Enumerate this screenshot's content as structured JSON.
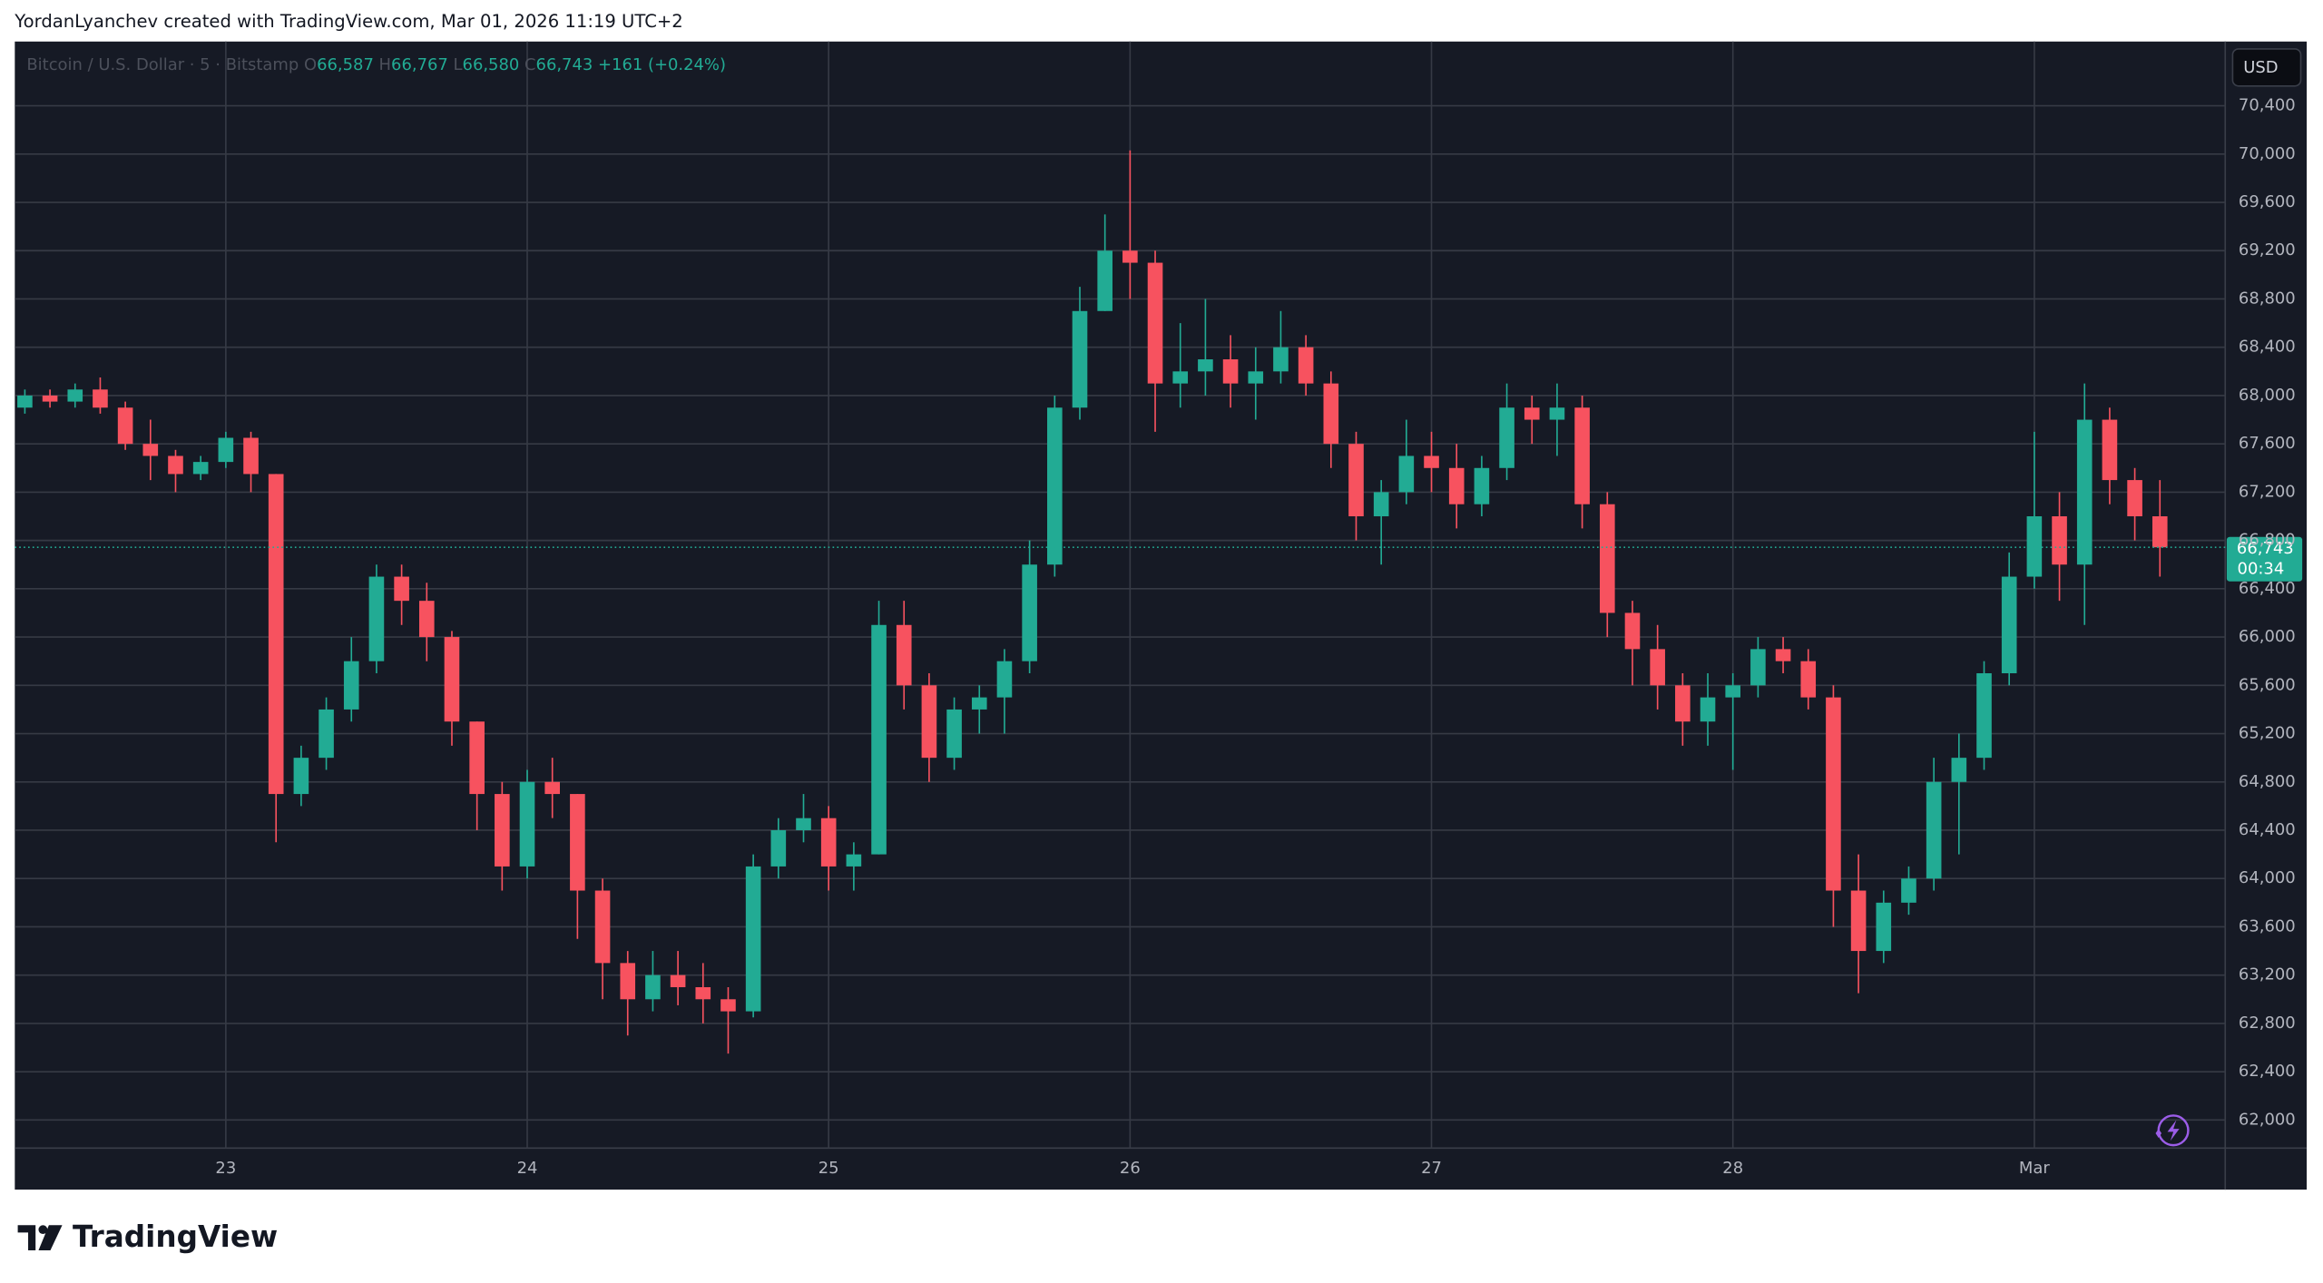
{
  "attribution": "YordanLyanchev created with TradingView.com, Mar 01, 2026 11:19 UTC+2",
  "footer": {
    "brand": "TradingView"
  },
  "currency_button": "USD",
  "chart_data": {
    "type": "candlestick",
    "legend": {
      "symbol": "Bitcoin / U.S. Dollar · 5 · Bitstamp",
      "o_label": "O",
      "open": "66,587",
      "h_label": "H",
      "high": "66,767",
      "l_label": "L",
      "low": "66,580",
      "c_label": "C",
      "close": "66,743",
      "change": "+161 (+0.24%)"
    },
    "price_tag": {
      "value": 66743,
      "label": "66,743",
      "countdown": "00:34"
    },
    "up_color": "#22ab94",
    "down_color": "#f7525f",
    "grid": true,
    "xlim": [
      -0.4,
      87.6
    ],
    "xticks": [
      {
        "value": 8,
        "label": "23"
      },
      {
        "value": 20,
        "label": "24"
      },
      {
        "value": 32,
        "label": "25"
      },
      {
        "value": 44,
        "label": "26"
      },
      {
        "value": 56,
        "label": "27"
      },
      {
        "value": 68,
        "label": "28"
      },
      {
        "value": 80,
        "label": "Mar"
      }
    ],
    "ylim": [
      61767,
      70932
    ],
    "yticks": [
      {
        "value": 62000,
        "label": "62,000"
      },
      {
        "value": 62400,
        "label": "62,400"
      },
      {
        "value": 62800,
        "label": "62,800"
      },
      {
        "value": 63200,
        "label": "63,200"
      },
      {
        "value": 63600,
        "label": "63,600"
      },
      {
        "value": 64000,
        "label": "64,000"
      },
      {
        "value": 64400,
        "label": "64,400"
      },
      {
        "value": 64800,
        "label": "64,800"
      },
      {
        "value": 65200,
        "label": "65,200"
      },
      {
        "value": 65600,
        "label": "65,600"
      },
      {
        "value": 66000,
        "label": "66,000"
      },
      {
        "value": 66400,
        "label": "66,400"
      },
      {
        "value": 66800,
        "label": "66,800"
      },
      {
        "value": 67200,
        "label": "67,200"
      },
      {
        "value": 67600,
        "label": "67,600"
      },
      {
        "value": 68000,
        "label": "68,000"
      },
      {
        "value": 68400,
        "label": "68,400"
      },
      {
        "value": 68800,
        "label": "68,800"
      },
      {
        "value": 69200,
        "label": "69,200"
      },
      {
        "value": 69600,
        "label": "69,600"
      },
      {
        "value": 70000,
        "label": "70,000"
      },
      {
        "value": 70400,
        "label": "70,400"
      }
    ],
    "candles": [
      [
        67900,
        68050,
        67850,
        68000
      ],
      [
        68000,
        68050,
        67900,
        67950
      ],
      [
        67950,
        68100,
        67900,
        68050
      ],
      [
        68050,
        68150,
        67850,
        67900
      ],
      [
        67900,
        67950,
        67550,
        67600
      ],
      [
        67600,
        67800,
        67300,
        67500
      ],
      [
        67500,
        67550,
        67200,
        67350
      ],
      [
        67350,
        67500,
        67300,
        67450
      ],
      [
        67450,
        67700,
        67400,
        67650
      ],
      [
        67650,
        67700,
        67200,
        67350
      ],
      [
        67350,
        67350,
        64300,
        64700
      ],
      [
        64700,
        65100,
        64600,
        65000
      ],
      [
        65000,
        65500,
        64900,
        65400
      ],
      [
        65400,
        66000,
        65300,
        65800
      ],
      [
        65800,
        66600,
        65700,
        66500
      ],
      [
        66500,
        66600,
        66100,
        66300
      ],
      [
        66300,
        66450,
        65800,
        66000
      ],
      [
        66000,
        66050,
        65100,
        65300
      ],
      [
        65300,
        65300,
        64400,
        64700
      ],
      [
        64700,
        64800,
        63900,
        64100
      ],
      [
        64100,
        64900,
        64000,
        64800
      ],
      [
        64800,
        65000,
        64500,
        64700
      ],
      [
        64700,
        64700,
        63500,
        63900
      ],
      [
        63900,
        64000,
        63000,
        63300
      ],
      [
        63300,
        63400,
        62700,
        63000
      ],
      [
        63000,
        63400,
        62900,
        63200
      ],
      [
        63200,
        63400,
        62950,
        63100
      ],
      [
        63100,
        63300,
        62800,
        63000
      ],
      [
        63000,
        63100,
        62550,
        62900
      ],
      [
        62900,
        64200,
        62850,
        64100
      ],
      [
        64100,
        64500,
        64000,
        64400
      ],
      [
        64400,
        64700,
        64300,
        64500
      ],
      [
        64500,
        64600,
        63900,
        64100
      ],
      [
        64100,
        64300,
        63900,
        64200
      ],
      [
        64200,
        66300,
        64200,
        66100
      ],
      [
        66100,
        66300,
        65400,
        65600
      ],
      [
        65600,
        65700,
        64800,
        65000
      ],
      [
        65000,
        65500,
        64900,
        65400
      ],
      [
        65400,
        65600,
        65200,
        65500
      ],
      [
        65500,
        65900,
        65200,
        65800
      ],
      [
        65800,
        66800,
        65700,
        66600
      ],
      [
        66600,
        68000,
        66500,
        67900
      ],
      [
        67900,
        68900,
        67800,
        68700
      ],
      [
        68700,
        69500,
        68700,
        69200
      ],
      [
        69200,
        70030,
        68800,
        69100
      ],
      [
        69100,
        69200,
        67700,
        68100
      ],
      [
        68100,
        68600,
        67900,
        68200
      ],
      [
        68200,
        68800,
        68000,
        68300
      ],
      [
        68300,
        68500,
        67900,
        68100
      ],
      [
        68100,
        68400,
        67800,
        68200
      ],
      [
        68200,
        68700,
        68100,
        68400
      ],
      [
        68400,
        68500,
        68000,
        68100
      ],
      [
        68100,
        68200,
        67400,
        67600
      ],
      [
        67600,
        67700,
        66800,
        67000
      ],
      [
        67000,
        67300,
        66600,
        67200
      ],
      [
        67200,
        67800,
        67100,
        67500
      ],
      [
        67500,
        67700,
        67200,
        67400
      ],
      [
        67400,
        67600,
        66900,
        67100
      ],
      [
        67100,
        67500,
        67000,
        67400
      ],
      [
        67400,
        68100,
        67300,
        67900
      ],
      [
        67900,
        68000,
        67600,
        67800
      ],
      [
        67800,
        68100,
        67500,
        67900
      ],
      [
        67900,
        68000,
        66900,
        67100
      ],
      [
        67100,
        67200,
        66000,
        66200
      ],
      [
        66200,
        66300,
        65600,
        65900
      ],
      [
        65900,
        66100,
        65400,
        65600
      ],
      [
        65600,
        65700,
        65100,
        65300
      ],
      [
        65300,
        65700,
        65100,
        65500
      ],
      [
        65500,
        65700,
        64900,
        65600
      ],
      [
        65600,
        66000,
        65500,
        65900
      ],
      [
        65900,
        66000,
        65700,
        65800
      ],
      [
        65800,
        65900,
        65400,
        65500
      ],
      [
        65500,
        65600,
        63600,
        63900
      ],
      [
        63900,
        64200,
        63050,
        63400
      ],
      [
        63400,
        63900,
        63300,
        63800
      ],
      [
        63800,
        64100,
        63700,
        64000
      ],
      [
        64000,
        65000,
        63900,
        64800
      ],
      [
        64800,
        65200,
        64200,
        65000
      ],
      [
        65000,
        65800,
        64900,
        65700
      ],
      [
        65700,
        66700,
        65600,
        66500
      ],
      [
        66500,
        67700,
        66400,
        67000
      ],
      [
        67000,
        67200,
        66300,
        66600
      ],
      [
        66600,
        68100,
        66100,
        67800
      ],
      [
        67800,
        67900,
        67100,
        67300
      ],
      [
        67300,
        67400,
        66800,
        67000
      ],
      [
        67000,
        67300,
        66500,
        66743
      ]
    ]
  }
}
